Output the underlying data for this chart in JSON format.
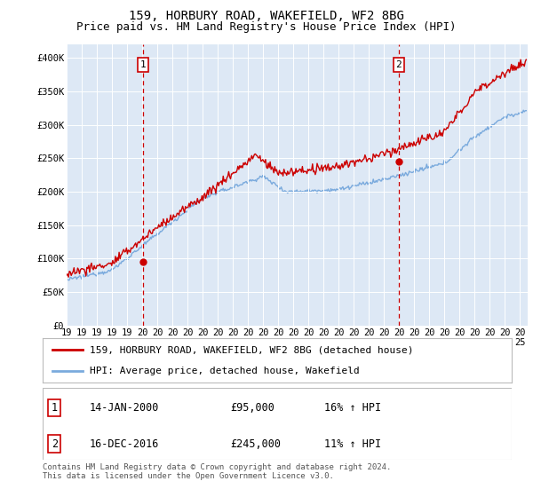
{
  "title": "159, HORBURY ROAD, WAKEFIELD, WF2 8BG",
  "subtitle": "Price paid vs. HM Land Registry's House Price Index (HPI)",
  "ylabel_ticks": [
    "£0",
    "£50K",
    "£100K",
    "£150K",
    "£200K",
    "£250K",
    "£300K",
    "£350K",
    "£400K"
  ],
  "ylim": [
    0,
    420000
  ],
  "xlim_start": 1995.0,
  "xlim_end": 2025.5,
  "sale1": {
    "date_num": 2000.04,
    "price": 95000,
    "label": "1",
    "date_str": "14-JAN-2000",
    "hpi_pct": "16%"
  },
  "sale2": {
    "date_num": 2016.96,
    "price": 245000,
    "label": "2",
    "date_str": "16-DEC-2016",
    "hpi_pct": "11%"
  },
  "legend_line1": "159, HORBURY ROAD, WAKEFIELD, WF2 8BG (detached house)",
  "legend_line2": "HPI: Average price, detached house, Wakefield",
  "footer": "Contains HM Land Registry data © Crown copyright and database right 2024.\nThis data is licensed under the Open Government Licence v3.0.",
  "red_color": "#cc0000",
  "blue_color": "#7aaadd",
  "background_color": "#dde8f5",
  "grid_color": "#ffffff",
  "title_fontsize": 10,
  "subtitle_fontsize": 9,
  "tick_fontsize": 7.5,
  "label_box_color": "#ffffff",
  "label_box_edge": "#cc0000"
}
